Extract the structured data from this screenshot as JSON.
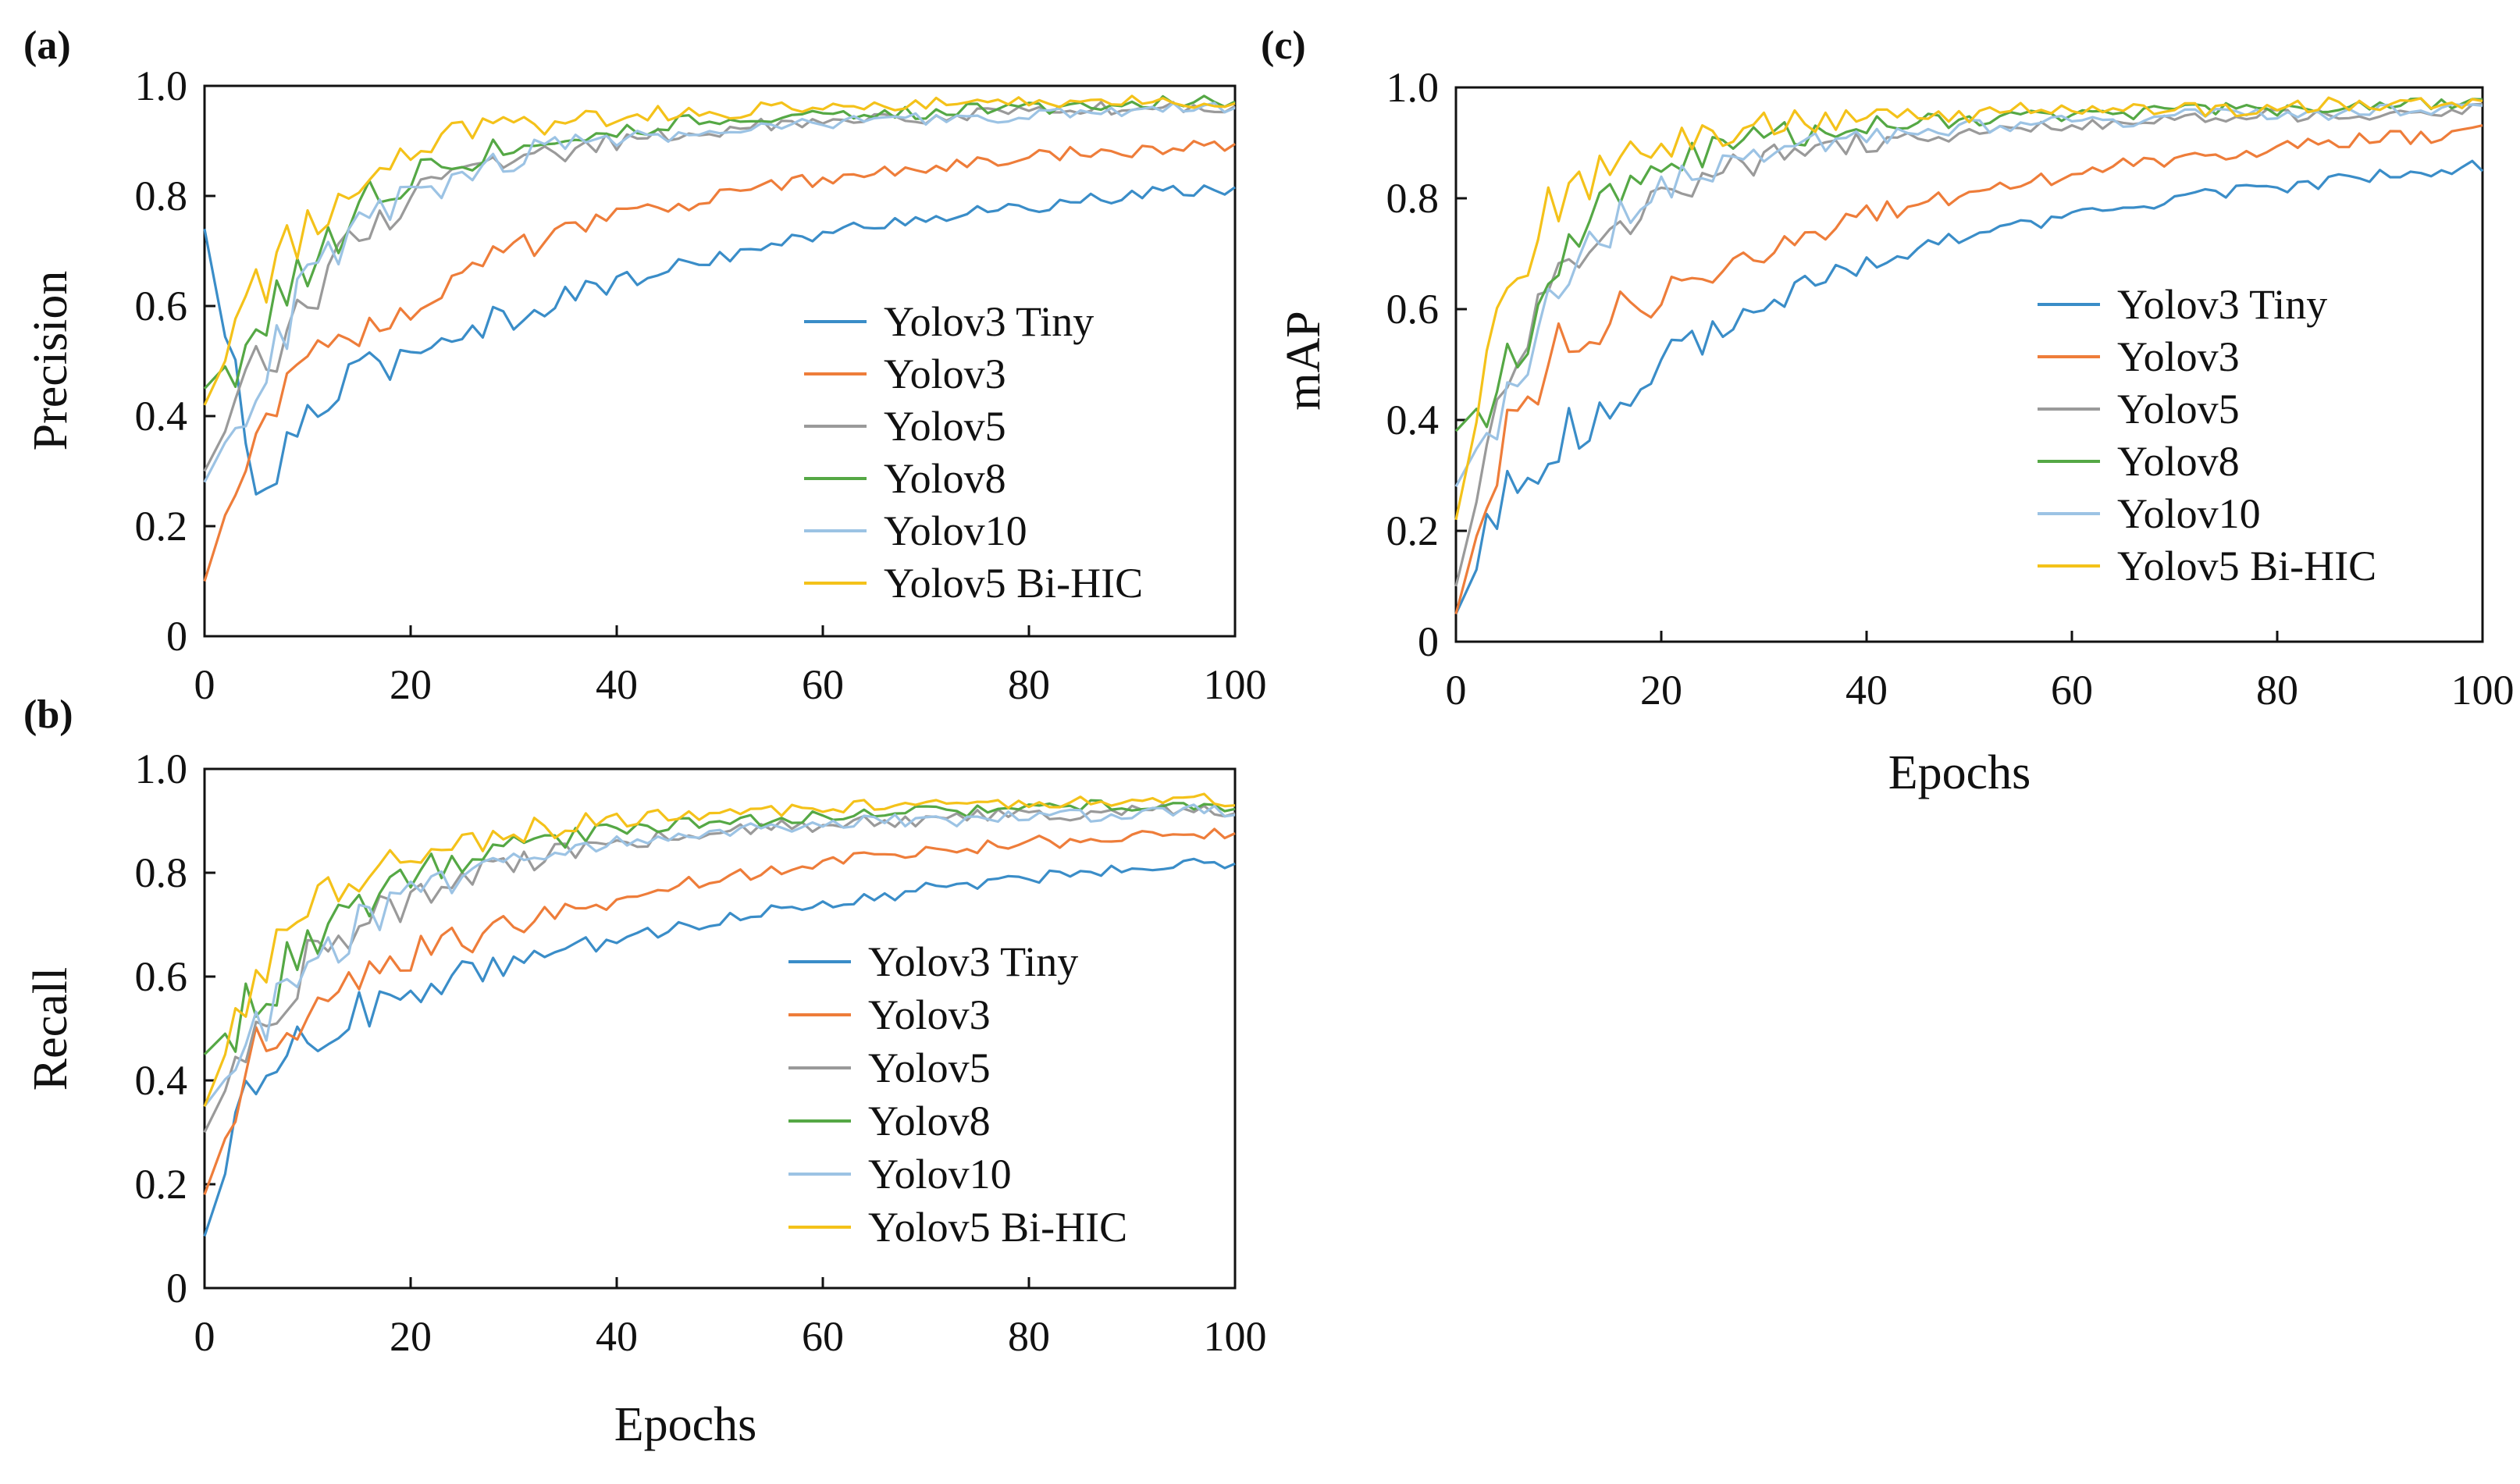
{
  "chart_data": [
    {
      "type": "line",
      "panel_label": "(a)",
      "xlabel": "",
      "ylabel": "Precision",
      "xlim": [
        0,
        100
      ],
      "ylim": [
        0,
        1.0
      ],
      "xticks": [
        "0",
        "20",
        "40",
        "60",
        "80",
        "100"
      ],
      "yticks": [
        "0",
        "0.2",
        "0.4",
        "0.6",
        "0.8",
        "1.0"
      ],
      "legend_position": "center-right",
      "x": [
        0,
        5,
        10,
        15,
        20,
        25,
        30,
        35,
        40,
        45,
        50,
        55,
        60,
        65,
        70,
        75,
        80,
        85,
        90,
        95,
        100
      ],
      "series": [
        {
          "name": "Yolov3 Tiny",
          "color": "#3a8dc8",
          "values": [
            0.74,
            0.25,
            0.4,
            0.47,
            0.52,
            0.56,
            0.58,
            0.62,
            0.64,
            0.67,
            0.69,
            0.71,
            0.73,
            0.75,
            0.76,
            0.77,
            0.78,
            0.79,
            0.8,
            0.81,
            0.81
          ]
        },
        {
          "name": "Yolov3",
          "color": "#ee7d3a",
          "values": [
            0.1,
            0.4,
            0.51,
            0.56,
            0.61,
            0.66,
            0.7,
            0.73,
            0.76,
            0.78,
            0.8,
            0.82,
            0.83,
            0.84,
            0.85,
            0.86,
            0.87,
            0.88,
            0.88,
            0.89,
            0.89
          ]
        },
        {
          "name": "Yolov5",
          "color": "#9a9a9a",
          "values": [
            0.3,
            0.48,
            0.62,
            0.73,
            0.79,
            0.83,
            0.86,
            0.88,
            0.9,
            0.91,
            0.92,
            0.93,
            0.93,
            0.94,
            0.94,
            0.95,
            0.95,
            0.96,
            0.96,
            0.96,
            0.96
          ]
        },
        {
          "name": "Yolov8",
          "color": "#55a845",
          "values": [
            0.45,
            0.55,
            0.68,
            0.78,
            0.84,
            0.87,
            0.89,
            0.91,
            0.92,
            0.93,
            0.94,
            0.94,
            0.95,
            0.95,
            0.95,
            0.96,
            0.96,
            0.96,
            0.97,
            0.97,
            0.97
          ]
        },
        {
          "name": "Yolov10",
          "color": "#9cc3e4",
          "values": [
            0.28,
            0.46,
            0.64,
            0.74,
            0.8,
            0.84,
            0.87,
            0.89,
            0.9,
            0.91,
            0.92,
            0.93,
            0.93,
            0.94,
            0.94,
            0.94,
            0.95,
            0.95,
            0.95,
            0.96,
            0.96
          ]
        },
        {
          "name": "Yolov5 Bi-HIC",
          "color": "#f4c21a",
          "values": [
            0.42,
            0.62,
            0.76,
            0.84,
            0.88,
            0.91,
            0.92,
            0.93,
            0.94,
            0.95,
            0.95,
            0.96,
            0.96,
            0.96,
            0.97,
            0.97,
            0.97,
            0.97,
            0.97,
            0.97,
            0.97
          ]
        }
      ]
    },
    {
      "type": "line",
      "panel_label": "(b)",
      "xlabel": "Epochs",
      "ylabel": "Recall",
      "xlim": [
        0,
        100
      ],
      "ylim": [
        0,
        1.0
      ],
      "xticks": [
        "0",
        "20",
        "40",
        "60",
        "80",
        "100"
      ],
      "yticks": [
        "0",
        "0.2",
        "0.4",
        "0.6",
        "0.8",
        "1.0"
      ],
      "legend_position": "center-right",
      "x": [
        0,
        5,
        10,
        15,
        20,
        25,
        30,
        35,
        40,
        45,
        50,
        55,
        60,
        65,
        70,
        75,
        80,
        85,
        90,
        95,
        100
      ],
      "series": [
        {
          "name": "Yolov3 Tiny",
          "color": "#3a8dc8",
          "values": [
            0.1,
            0.4,
            0.48,
            0.53,
            0.57,
            0.6,
            0.63,
            0.65,
            0.67,
            0.69,
            0.71,
            0.73,
            0.74,
            0.75,
            0.77,
            0.78,
            0.79,
            0.8,
            0.81,
            0.82,
            0.82
          ]
        },
        {
          "name": "Yolov3",
          "color": "#ee7d3a",
          "values": [
            0.18,
            0.45,
            0.55,
            0.6,
            0.64,
            0.67,
            0.7,
            0.73,
            0.75,
            0.77,
            0.79,
            0.8,
            0.82,
            0.83,
            0.84,
            0.85,
            0.86,
            0.86,
            0.87,
            0.87,
            0.88
          ]
        },
        {
          "name": "Yolov5",
          "color": "#9a9a9a",
          "values": [
            0.3,
            0.5,
            0.62,
            0.7,
            0.75,
            0.79,
            0.82,
            0.84,
            0.86,
            0.87,
            0.88,
            0.89,
            0.89,
            0.9,
            0.9,
            0.91,
            0.91,
            0.91,
            0.92,
            0.92,
            0.92
          ]
        },
        {
          "name": "Yolov8",
          "color": "#55a845",
          "values": [
            0.45,
            0.55,
            0.66,
            0.74,
            0.79,
            0.83,
            0.85,
            0.87,
            0.88,
            0.89,
            0.9,
            0.9,
            0.91,
            0.91,
            0.92,
            0.92,
            0.92,
            0.93,
            0.93,
            0.93,
            0.93
          ]
        },
        {
          "name": "Yolov10",
          "color": "#9cc3e4",
          "values": [
            0.35,
            0.48,
            0.62,
            0.7,
            0.76,
            0.8,
            0.83,
            0.85,
            0.86,
            0.87,
            0.88,
            0.89,
            0.89,
            0.9,
            0.9,
            0.9,
            0.91,
            0.91,
            0.91,
            0.92,
            0.92
          ]
        },
        {
          "name": "Yolov5 Bi-HIC",
          "color": "#f4c21a",
          "values": [
            0.35,
            0.6,
            0.73,
            0.79,
            0.83,
            0.86,
            0.88,
            0.89,
            0.9,
            0.91,
            0.91,
            0.92,
            0.92,
            0.93,
            0.93,
            0.93,
            0.93,
            0.94,
            0.94,
            0.94,
            0.94
          ]
        }
      ]
    },
    {
      "type": "line",
      "panel_label": "(c)",
      "xlabel": "Epochs",
      "ylabel": "mAP",
      "xlim": [
        0,
        100
      ],
      "ylim": [
        0,
        1.0
      ],
      "xticks": [
        "0",
        "20",
        "40",
        "60",
        "80",
        "100"
      ],
      "yticks": [
        "0",
        "0.2",
        "0.4",
        "0.6",
        "0.8",
        "1.0"
      ],
      "legend_position": "center-right",
      "x": [
        0,
        5,
        10,
        15,
        20,
        25,
        30,
        35,
        40,
        45,
        50,
        55,
        60,
        65,
        70,
        75,
        80,
        85,
        90,
        95,
        100
      ],
      "series": [
        {
          "name": "Yolov3 Tiny",
          "color": "#3a8dc8",
          "values": [
            0.05,
            0.25,
            0.36,
            0.44,
            0.5,
            0.56,
            0.61,
            0.65,
            0.68,
            0.71,
            0.73,
            0.75,
            0.77,
            0.78,
            0.8,
            0.81,
            0.82,
            0.83,
            0.84,
            0.85,
            0.86
          ]
        },
        {
          "name": "Yolov3",
          "color": "#ee7d3a",
          "values": [
            0.05,
            0.4,
            0.53,
            0.59,
            0.63,
            0.67,
            0.71,
            0.74,
            0.77,
            0.79,
            0.81,
            0.83,
            0.84,
            0.86,
            0.87,
            0.88,
            0.89,
            0.9,
            0.91,
            0.91,
            0.92
          ]
        },
        {
          "name": "Yolov5",
          "color": "#9a9a9a",
          "values": [
            0.1,
            0.48,
            0.66,
            0.74,
            0.8,
            0.84,
            0.87,
            0.89,
            0.9,
            0.91,
            0.92,
            0.93,
            0.93,
            0.94,
            0.94,
            0.95,
            0.95,
            0.95,
            0.95,
            0.96,
            0.96
          ]
        },
        {
          "name": "Yolov8",
          "color": "#55a845",
          "values": [
            0.38,
            0.48,
            0.66,
            0.8,
            0.86,
            0.89,
            0.91,
            0.92,
            0.93,
            0.94,
            0.94,
            0.95,
            0.95,
            0.95,
            0.96,
            0.96,
            0.96,
            0.96,
            0.97,
            0.97,
            0.97
          ]
        },
        {
          "name": "Yolov10",
          "color": "#9cc3e4",
          "values": [
            0.28,
            0.45,
            0.64,
            0.75,
            0.81,
            0.85,
            0.88,
            0.9,
            0.91,
            0.92,
            0.93,
            0.93,
            0.94,
            0.94,
            0.95,
            0.95,
            0.95,
            0.95,
            0.96,
            0.96,
            0.96
          ]
        },
        {
          "name": "Yolov5 Bi-HIC",
          "color": "#f4c21a",
          "values": [
            0.22,
            0.66,
            0.8,
            0.86,
            0.9,
            0.92,
            0.93,
            0.94,
            0.95,
            0.95,
            0.95,
            0.96,
            0.96,
            0.96,
            0.96,
            0.96,
            0.96,
            0.97,
            0.97,
            0.97,
            0.97
          ]
        }
      ]
    }
  ]
}
